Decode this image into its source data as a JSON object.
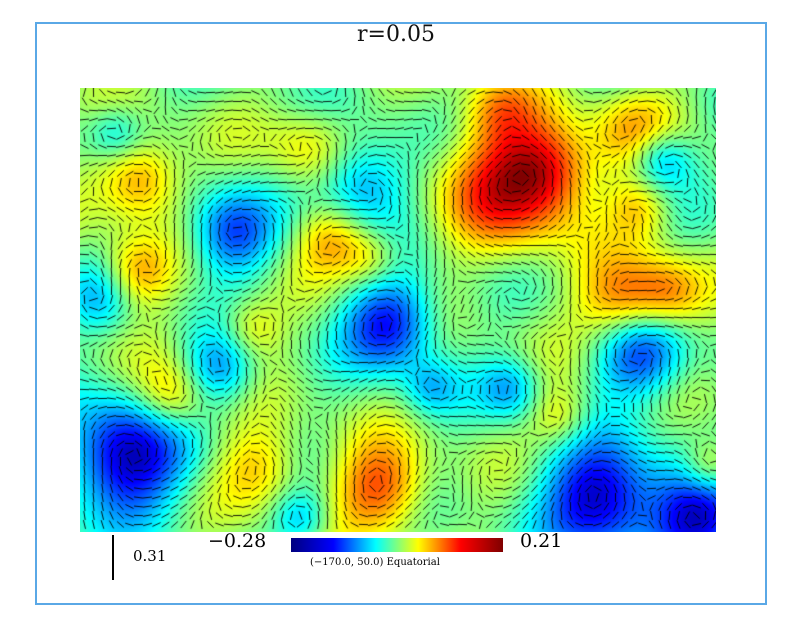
{
  "title": "r=0.05",
  "colorbar": {
    "min_label": "−0.28",
    "max_label": "0.21",
    "colormap": [
      "#00007f",
      "#0000ff",
      "#00ffff",
      "#ffff00",
      "#ff0000",
      "#7f0000"
    ]
  },
  "scale_bar": {
    "value": "0.31"
  },
  "coordinate_label": "(−170.0, 50.0) Equatorial",
  "colors": {
    "frame_border": "#5aa8e6",
    "vector_color": "#000000"
  }
}
